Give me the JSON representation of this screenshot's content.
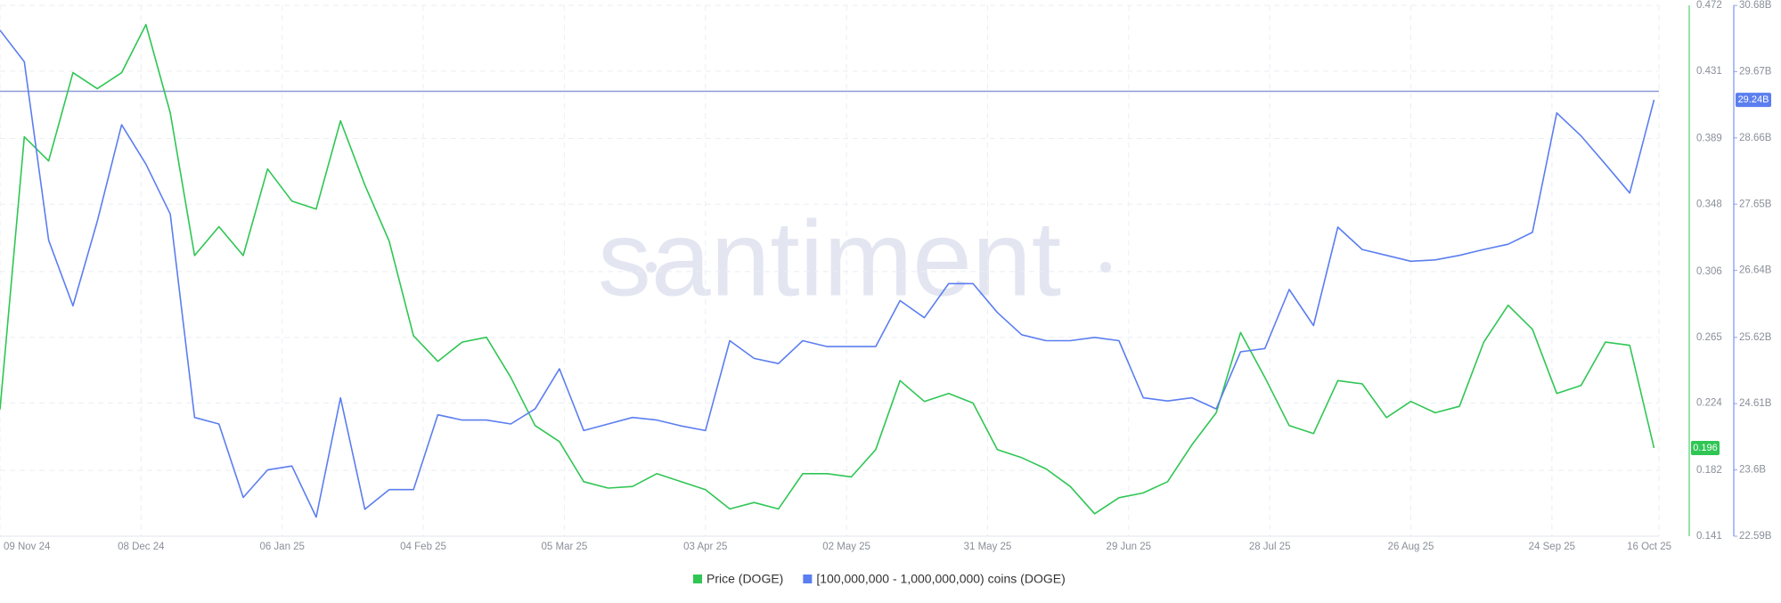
{
  "chart_data": {
    "type": "line",
    "watermark": "santiment",
    "x": [
      "2024-11-09",
      "2024-11-14",
      "2024-11-19",
      "2024-11-24",
      "2024-11-29",
      "2024-12-04",
      "2024-12-09",
      "2024-12-14",
      "2024-12-19",
      "2024-12-24",
      "2024-12-29",
      "2025-01-03",
      "2025-01-08",
      "2025-01-13",
      "2025-01-18",
      "2025-01-23",
      "2025-01-28",
      "2025-02-02",
      "2025-02-07",
      "2025-02-12",
      "2025-02-17",
      "2025-02-22",
      "2025-02-27",
      "2025-03-04",
      "2025-03-09",
      "2025-03-14",
      "2025-03-19",
      "2025-03-24",
      "2025-03-29",
      "2025-04-03",
      "2025-04-08",
      "2025-04-13",
      "2025-04-18",
      "2025-04-23",
      "2025-04-28",
      "2025-05-03",
      "2025-05-08",
      "2025-05-13",
      "2025-05-18",
      "2025-05-23",
      "2025-05-28",
      "2025-06-02",
      "2025-06-07",
      "2025-06-12",
      "2025-06-17",
      "2025-06-22",
      "2025-06-27",
      "2025-07-02",
      "2025-07-07",
      "2025-07-12",
      "2025-07-17",
      "2025-07-22",
      "2025-07-27",
      "2025-08-01",
      "2025-08-06",
      "2025-08-11",
      "2025-08-16",
      "2025-08-21",
      "2025-08-26",
      "2025-08-31",
      "2025-09-05",
      "2025-09-10",
      "2025-09-15",
      "2025-09-20",
      "2025-09-25",
      "2025-09-30",
      "2025-10-05",
      "2025-10-10",
      "2025-10-15"
    ],
    "xlim": [
      "2024-11-09",
      "2025-10-16"
    ],
    "xticks": [
      {
        "value": "2024-11-09",
        "label": "09 Nov 24"
      },
      {
        "value": "2024-12-08",
        "label": "08 Dec 24"
      },
      {
        "value": "2025-01-06",
        "label": "06 Jan 25"
      },
      {
        "value": "2025-02-04",
        "label": "04 Feb 25"
      },
      {
        "value": "2025-03-05",
        "label": "05 Mar 25"
      },
      {
        "value": "2025-04-03",
        "label": "03 Apr 25"
      },
      {
        "value": "2025-05-02",
        "label": "02 May 25"
      },
      {
        "value": "2025-05-31",
        "label": "31 May 25"
      },
      {
        "value": "2025-06-29",
        "label": "29 Jun 25"
      },
      {
        "value": "2025-07-28",
        "label": "28 Jul 25"
      },
      {
        "value": "2025-08-26",
        "label": "26 Aug 25"
      },
      {
        "value": "2025-09-24",
        "label": "24 Sep 25"
      },
      {
        "value": "2025-10-16",
        "label": "16 Oct 25"
      }
    ],
    "ylim": [
      0.141,
      0.472
    ],
    "yticks": [
      0.141,
      0.182,
      0.224,
      0.265,
      0.306,
      0.348,
      0.389,
      0.431,
      0.472
    ],
    "y2lim": [
      22.59,
      30.68
    ],
    "y2ticks": [
      {
        "value": 22.59,
        "label": "22.59B"
      },
      {
        "value": 23.6,
        "label": "23.6B"
      },
      {
        "value": 24.61,
        "label": "24.61B"
      },
      {
        "value": 25.62,
        "label": "25.62B"
      },
      {
        "value": 26.64,
        "label": "26.64B"
      },
      {
        "value": 27.65,
        "label": "27.65B"
      },
      {
        "value": 28.66,
        "label": "28.66B"
      },
      {
        "value": 29.67,
        "label": "29.67B"
      },
      {
        "value": 30.68,
        "label": "30.68B"
      }
    ],
    "grid": true,
    "legend": "bottom",
    "reference_line": {
      "value": 29.37,
      "axis": "y2",
      "color": "#8d98d6"
    },
    "series": [
      {
        "name": "Price (DOGE)",
        "color": "#2fc654",
        "axis": "y",
        "values": [
          0.22,
          0.39,
          0.375,
          0.43,
          0.42,
          0.43,
          0.46,
          0.405,
          0.316,
          0.334,
          0.316,
          0.37,
          0.35,
          0.345,
          0.4,
          0.36,
          0.325,
          0.266,
          0.25,
          0.262,
          0.265,
          0.24,
          0.21,
          0.2,
          0.175,
          0.171,
          0.172,
          0.18,
          0.175,
          0.17,
          0.158,
          0.162,
          0.158,
          0.18,
          0.18,
          0.178,
          0.195,
          0.238,
          0.225,
          0.23,
          0.224,
          0.195,
          0.19,
          0.183,
          0.172,
          0.155,
          0.165,
          0.168,
          0.175,
          0.198,
          0.218,
          0.268,
          0.24,
          0.21,
          0.205,
          0.238,
          0.236,
          0.215,
          0.225,
          0.218,
          0.222,
          0.262,
          0.285,
          0.27,
          0.23,
          0.235,
          0.262,
          0.26,
          0.196
        ]
      },
      {
        "name": "[100,000,000 - 1,000,000,000) coins (DOGE)",
        "color": "#5b7ef0",
        "axis": "y2",
        "end_label": "29.24B",
        "values": [
          30.3,
          29.82,
          27.1,
          26.1,
          27.39,
          28.86,
          28.26,
          27.5,
          24.4,
          24.3,
          23.18,
          23.6,
          23.66,
          22.88,
          24.7,
          23.0,
          23.3,
          23.3,
          24.44,
          24.36,
          24.36,
          24.3,
          24.53,
          25.14,
          24.2,
          24.3,
          24.4,
          24.36,
          24.27,
          24.2,
          25.57,
          25.3,
          25.22,
          25.57,
          25.48,
          25.48,
          25.48,
          26.18,
          25.92,
          26.44,
          26.44,
          26.0,
          25.66,
          25.57,
          25.57,
          25.62,
          25.57,
          24.7,
          24.65,
          24.7,
          24.53,
          25.4,
          25.45,
          26.35,
          25.8,
          27.3,
          26.96,
          26.87,
          26.78,
          26.8,
          26.87,
          26.96,
          27.04,
          27.22,
          29.04,
          28.69,
          28.26,
          27.82,
          29.24
        ]
      }
    ]
  }
}
